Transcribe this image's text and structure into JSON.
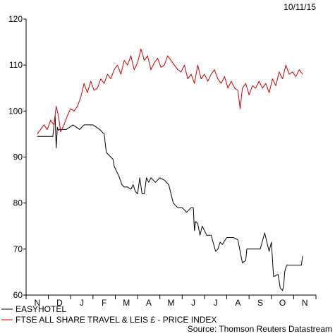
{
  "chart_data": {
    "type": "line",
    "date_label": "10/11/15",
    "source": "Source: Thomson Reuters Datastream",
    "x_categories": [
      "N",
      "D",
      "J",
      "F",
      "M",
      "A",
      "M",
      "J",
      "J",
      "A",
      "S",
      "O",
      "N"
    ],
    "ylim": [
      60,
      120
    ],
    "yticks": [
      60,
      70,
      80,
      90,
      100,
      110,
      120
    ],
    "grid": false,
    "legend_position": "bottom-left",
    "series": [
      {
        "name": "EASYHOTEL",
        "color": "#000000",
        "x": [
          0,
          0.3,
          0.7,
          0.8,
          0.85,
          0.9,
          0.95,
          1.0,
          1.05,
          1.1,
          1.3,
          1.6,
          1.9,
          2.1,
          2.3,
          2.5,
          2.8,
          3.0,
          3.05,
          3.1,
          3.3,
          3.4,
          3.45,
          3.55,
          3.65,
          3.8,
          3.9,
          4.0,
          4.05,
          4.2,
          4.3,
          4.4,
          4.5,
          4.6,
          4.7,
          4.8,
          4.9,
          5.0,
          5.1,
          5.3,
          5.5,
          5.7,
          5.9,
          6.1,
          6.3,
          6.5,
          6.7,
          6.9,
          7.0,
          7.05,
          7.1,
          7.2,
          7.3,
          7.4,
          7.5,
          7.6,
          7.8,
          8.0,
          8.1,
          8.2,
          8.3,
          8.5,
          8.6,
          8.7,
          8.8,
          9.0,
          9.2,
          9.35,
          9.4,
          9.5,
          9.6,
          9.8,
          10.0,
          10.2,
          10.4,
          10.5,
          10.6,
          10.8,
          10.9,
          11.0,
          11.05,
          11.1,
          11.15,
          11.2,
          11.3,
          11.5,
          11.7,
          11.85,
          11.9
        ],
        "values": [
          94.5,
          94.5,
          94.5,
          99.0,
          92.0,
          96.5,
          95.8,
          96.0,
          96.0,
          96.0,
          96.0,
          97.0,
          96.0,
          97.0,
          97.0,
          97.0,
          96.0,
          95.0,
          93.0,
          91.0,
          90.0,
          89.5,
          88.0,
          87.0,
          86.0,
          84.0,
          83.5,
          83.5,
          83.5,
          83.0,
          84.0,
          82.5,
          82.0,
          85.5,
          82.0,
          82.0,
          85.5,
          84.5,
          85.5,
          84.5,
          85.5,
          85.0,
          84.0,
          80.0,
          79.0,
          79.0,
          78.0,
          79.0,
          79.0,
          74.0,
          76.0,
          75.5,
          73.0,
          75.0,
          74.0,
          73.0,
          73.0,
          69.5,
          70.0,
          71.5,
          71.0,
          72.5,
          72.5,
          72.5,
          72.5,
          72.0,
          67.0,
          67.5,
          70.0,
          70.0,
          70.0,
          70.0,
          70.0,
          73.5,
          69.5,
          71.5,
          64.0,
          64.5,
          61.5,
          61.0,
          62.0,
          65.0,
          66.0,
          66.5,
          66.5,
          66.5,
          66.5,
          66.5,
          68.5
        ]
      },
      {
        "name": "FTSE ALL SHARE TRAVEL & LEIS £ - PRICE INDEX",
        "color": "#cc0000",
        "x": [
          0,
          0.15,
          0.3,
          0.45,
          0.6,
          0.75,
          0.85,
          0.95,
          1.05,
          1.2,
          1.35,
          1.5,
          1.65,
          1.8,
          1.95,
          2.1,
          2.25,
          2.4,
          2.55,
          2.7,
          2.85,
          3.0,
          3.15,
          3.3,
          3.45,
          3.6,
          3.75,
          3.9,
          4.05,
          4.2,
          4.35,
          4.5,
          4.65,
          4.8,
          4.95,
          5.1,
          5.25,
          5.4,
          5.55,
          5.7,
          5.85,
          6.0,
          6.15,
          6.3,
          6.45,
          6.6,
          6.75,
          6.9,
          7.05,
          7.2,
          7.35,
          7.5,
          7.65,
          7.8,
          7.95,
          8.1,
          8.25,
          8.4,
          8.55,
          8.7,
          8.85,
          9.0,
          9.1,
          9.2,
          9.35,
          9.5,
          9.65,
          9.8,
          9.95,
          10.1,
          10.25,
          10.4,
          10.55,
          10.7,
          10.85,
          11.0,
          11.15,
          11.3,
          11.45,
          11.6,
          11.75,
          11.9
        ],
        "values": [
          95.0,
          96.0,
          97.0,
          96.0,
          98.0,
          97.0,
          101.0,
          99.0,
          95.5,
          97.0,
          99.0,
          100.5,
          100.0,
          101.0,
          103.0,
          106.0,
          104.0,
          106.5,
          104.5,
          105.0,
          107.0,
          106.0,
          108.0,
          107.0,
          109.0,
          110.0,
          108.0,
          111.0,
          110.0,
          112.0,
          109.0,
          110.5,
          113.5,
          111.0,
          112.0,
          109.0,
          110.5,
          111.5,
          109.5,
          110.0,
          112.0,
          111.0,
          110.0,
          109.0,
          108.5,
          110.0,
          107.0,
          108.0,
          106.0,
          110.0,
          107.0,
          108.0,
          106.5,
          108.0,
          109.0,
          107.0,
          106.0,
          107.5,
          105.0,
          106.5,
          105.0,
          104.5,
          100.5,
          105.0,
          106.0,
          103.5,
          105.5,
          105.0,
          106.5,
          105.0,
          106.0,
          104.0,
          107.0,
          105.5,
          108.5,
          107.0,
          110.0,
          108.0,
          108.5,
          107.5,
          109.0,
          108.0
        ]
      }
    ]
  }
}
